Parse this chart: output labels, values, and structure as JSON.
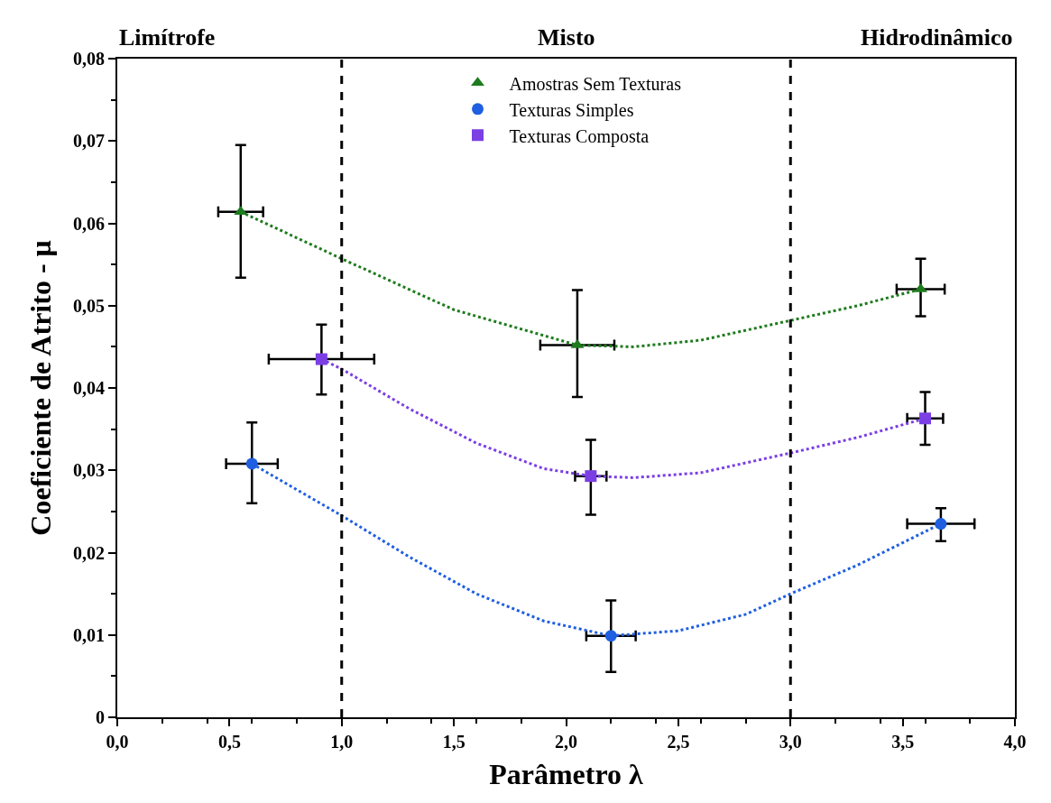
{
  "chart_data": {
    "type": "scatter",
    "xlabel": "Parâmetro λ",
    "ylabel": "Coeficiente de Atrito - μ",
    "annotations": [
      "Limítrofe",
      "Misto",
      "Hidrodinâmico"
    ],
    "series": [
      {
        "name": "Amostras Sem Texturas",
        "color": "#1e7b1e",
        "marker": "triangle",
        "x": [
          0.55,
          2.05,
          3.58
        ],
        "values": [
          0.0614,
          0.0452,
          0.052
        ],
        "errors": [
          [
            0.0534,
            0.0695
          ],
          [
            0.0389,
            0.0519
          ],
          [
            0.0487,
            0.0557
          ]
        ],
        "xerrors": [
          0.1,
          0.165,
          0.107
        ]
      },
      {
        "name": "Texturas Simples",
        "color": "#1f5fe0",
        "marker": "circle",
        "x": [
          0.6,
          2.2,
          3.67
        ],
        "values": [
          0.0308,
          0.0099,
          0.0235
        ],
        "errors": [
          [
            0.026,
            0.0358
          ],
          [
            0.0055,
            0.0142
          ],
          [
            0.0214,
            0.0254
          ]
        ],
        "xerrors": [
          0.115,
          0.11,
          0.15
        ]
      },
      {
        "name": "Texturas Composta",
        "color": "#7b3fe4",
        "marker": "square",
        "x": [
          0.91,
          2.11,
          3.6
        ],
        "values": [
          0.0435,
          0.0293,
          0.0363
        ],
        "errors": [
          [
            0.0392,
            0.0477
          ],
          [
            0.0246,
            0.0337
          ],
          [
            0.0331,
            0.0395
          ]
        ],
        "xerrors": [
          0.235,
          0.07,
          0.08
        ]
      },
      {
        "type": "line",
        "color": "#1e7b1e",
        "marker": "none",
        "x": [
          0.55,
          1.0,
          1.5,
          2.05,
          2.3,
          2.6,
          3.0,
          3.3,
          3.58
        ],
        "values": [
          0.0614,
          0.0557,
          0.0495,
          0.0452,
          0.045,
          0.0458,
          0.0482,
          0.05,
          0.052
        ]
      },
      {
        "type": "line",
        "color": "#1f5fe0",
        "marker": "none",
        "x": [
          0.6,
          1.0,
          1.3,
          1.6,
          1.9,
          2.2,
          2.5,
          2.8,
          3.0,
          3.3,
          3.67
        ],
        "values": [
          0.0308,
          0.0245,
          0.0195,
          0.015,
          0.0117,
          0.0099,
          0.0105,
          0.0125,
          0.015,
          0.0185,
          0.0235
        ]
      },
      {
        "type": "line",
        "color": "#7b3fe4",
        "marker": "none",
        "x": [
          0.91,
          1.0,
          1.3,
          1.6,
          1.9,
          2.11,
          2.3,
          2.6,
          3.0,
          3.3,
          3.6
        ],
        "values": [
          0.0435,
          0.0423,
          0.0375,
          0.0333,
          0.0302,
          0.0293,
          0.0291,
          0.0297,
          0.0321,
          0.034,
          0.0363
        ]
      }
    ],
    "line_style": "dotted",
    "ref_lines": [
      {
        "axis": "x",
        "value": 1.0,
        "color": "#000000",
        "line_style": "dashed"
      },
      {
        "axis": "x",
        "value": 3.0,
        "color": "#000000",
        "line_style": "dashed"
      }
    ],
    "xlim": [
      0,
      4
    ],
    "xticks": [
      {
        "value": 0,
        "label": "0,0"
      },
      {
        "value": 0.5,
        "label": "0,5"
      },
      {
        "value": 1,
        "label": "1,0"
      },
      {
        "value": 1.5,
        "label": "1,5"
      },
      {
        "value": 2,
        "label": "2,0"
      },
      {
        "value": 2.5,
        "label": "2,5"
      },
      {
        "value": 3,
        "label": "3,0"
      },
      {
        "value": 3.5,
        "label": "3,5"
      },
      {
        "value": 4,
        "label": "4,0"
      }
    ],
    "ylim": [
      0,
      0.08
    ],
    "yticks": [
      0,
      {
        "value": 0.01,
        "label": "0,01"
      },
      {
        "value": 0.02,
        "label": "0,02"
      },
      {
        "value": 0.03,
        "label": "0,03"
      },
      {
        "value": 0.04,
        "label": "0,04"
      },
      {
        "value": 0.05,
        "label": "0,05"
      },
      {
        "value": 0.06,
        "label": "0,06"
      },
      {
        "value": 0.07,
        "label": "0,07"
      },
      {
        "value": 0.08,
        "label": "0,08"
      }
    ],
    "legend": "top"
  }
}
